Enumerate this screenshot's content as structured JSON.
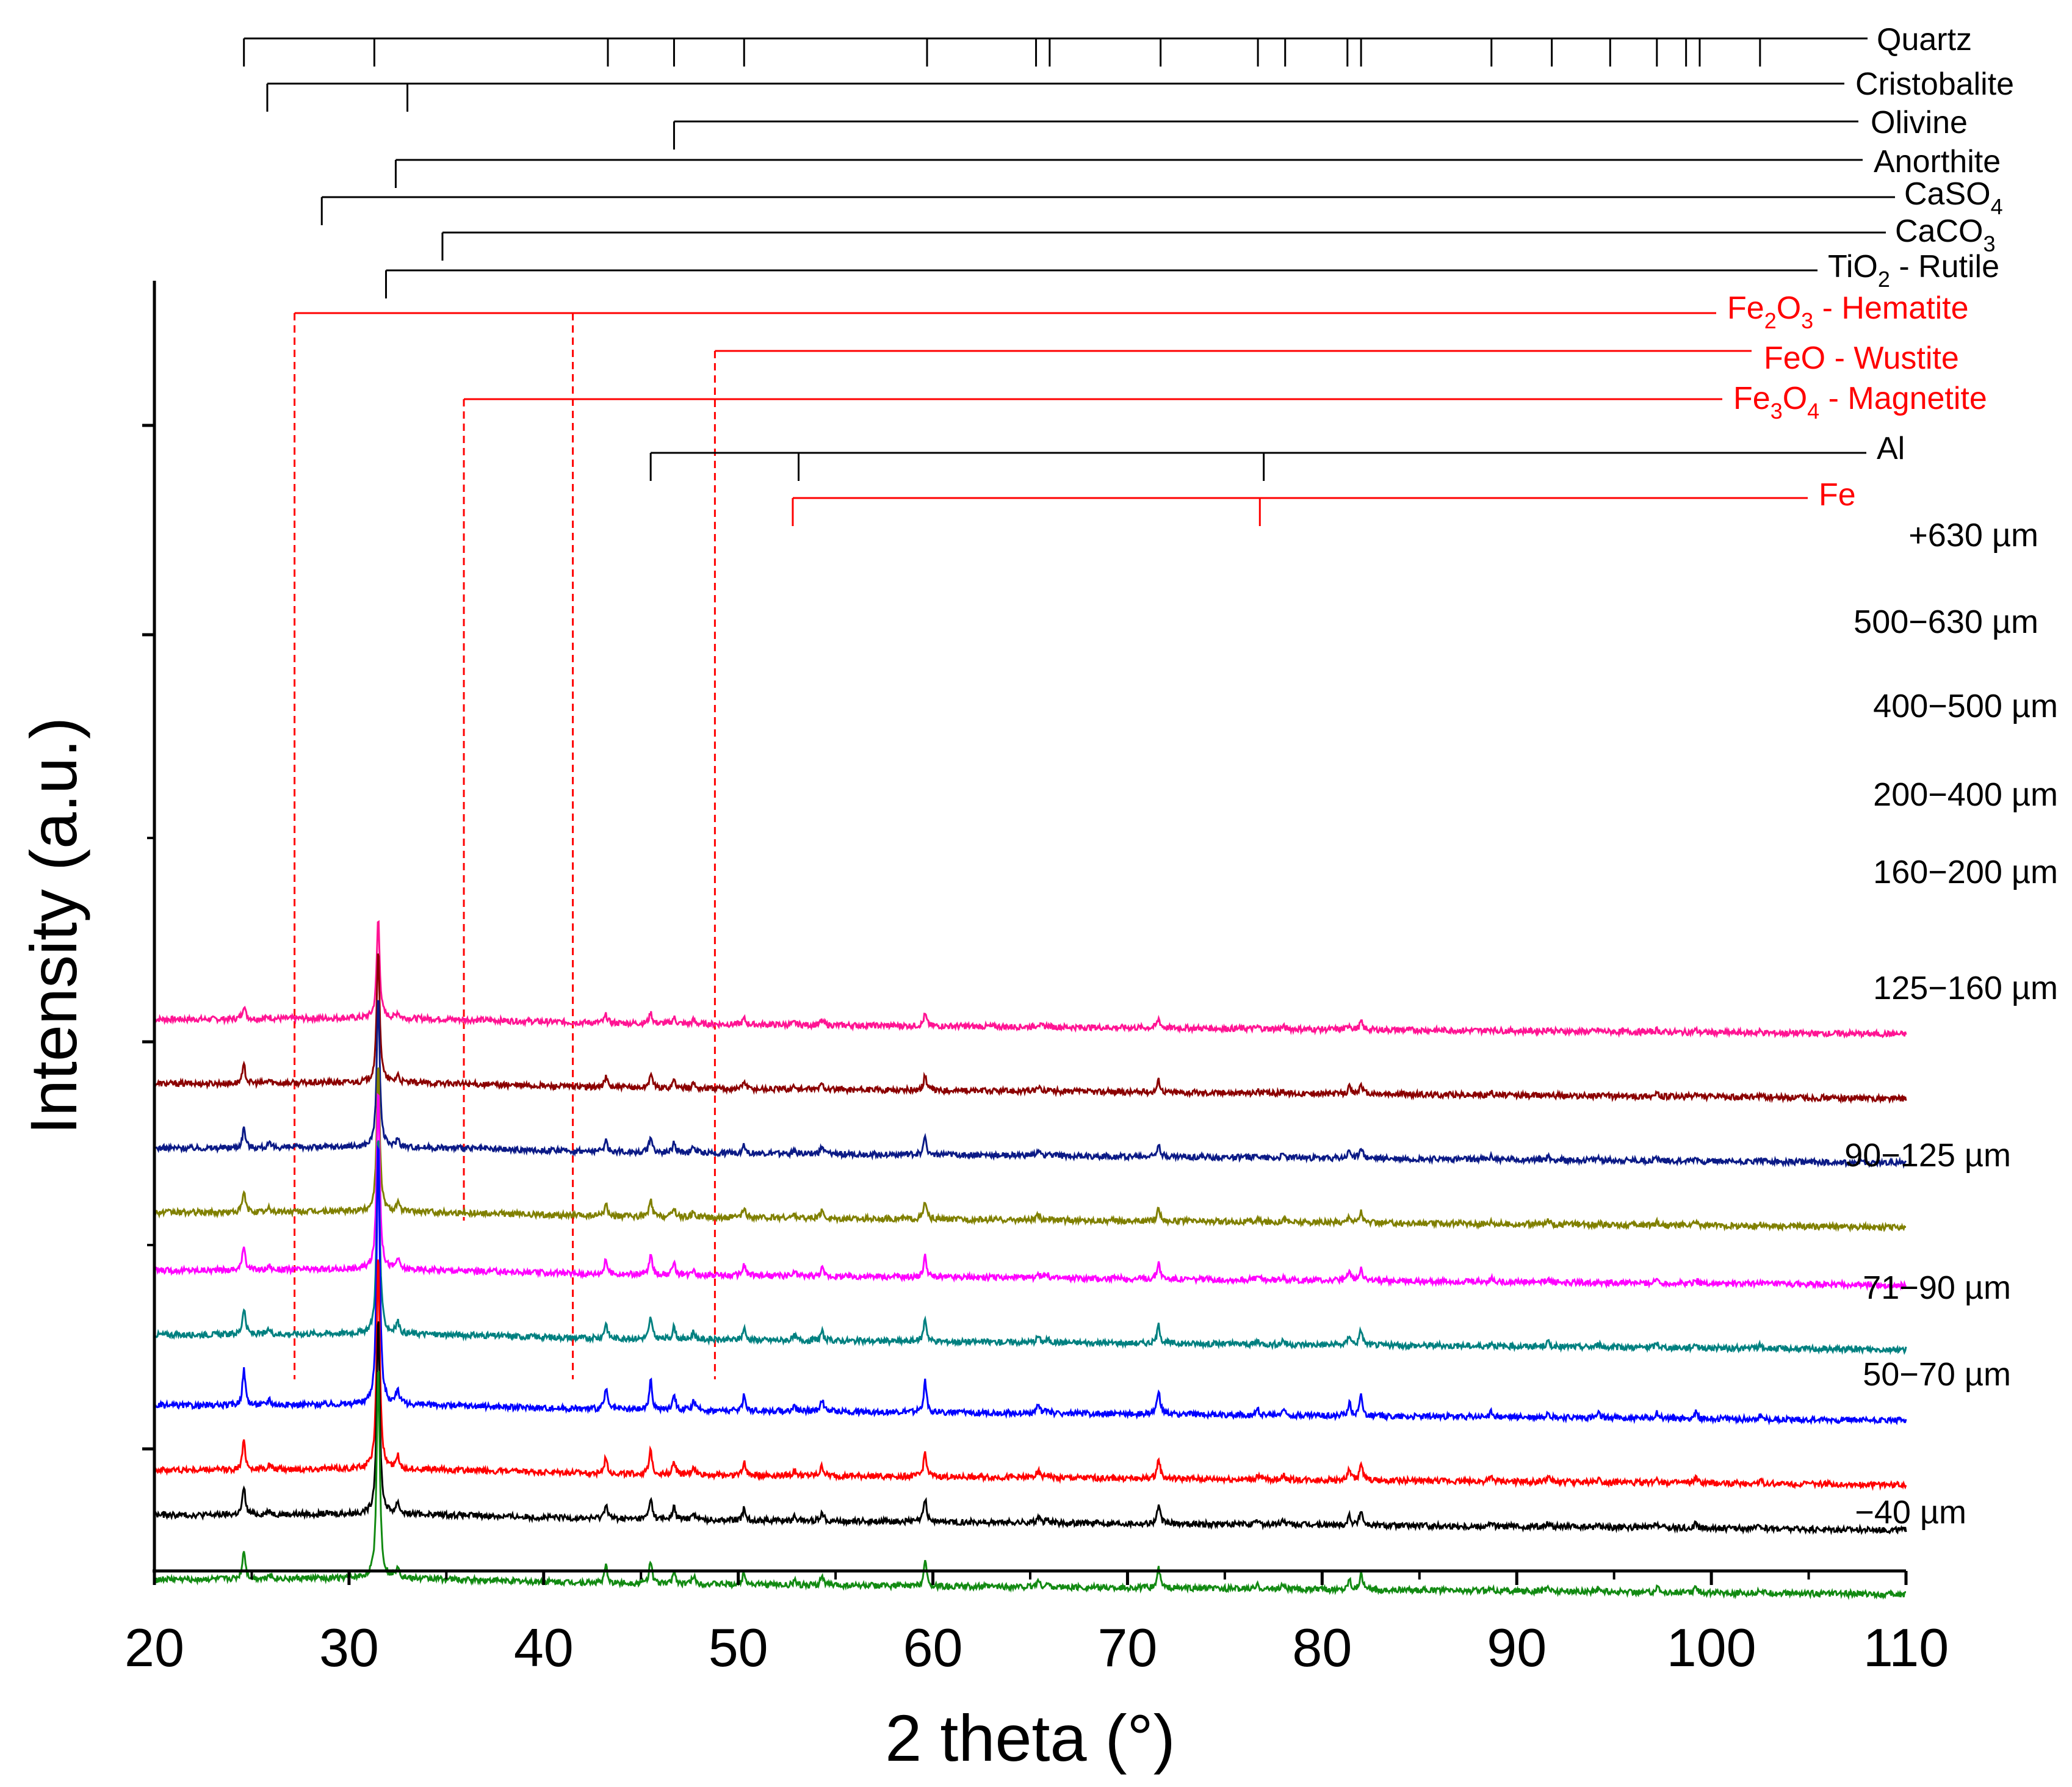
{
  "chart_data": {
    "type": "line",
    "title": "",
    "xlabel": "2 theta (°)",
    "ylabel": "Intensity (a.u.)",
    "xlim": [
      20,
      110
    ],
    "xticks": [
      "20",
      "30",
      "40",
      "50",
      "60",
      "70",
      "80",
      "90",
      "100",
      "110"
    ],
    "series": [
      {
        "name": "+630 µm",
        "color": "#ff1493",
        "strength": 0.3,
        "offset": 4.05
      },
      {
        "name": "500−630 µm",
        "color": "#8b0000",
        "strength": 0.4,
        "offset": 3.55
      },
      {
        "name": "400−500 µm",
        "color": "#0b1a86",
        "strength": 0.45,
        "offset": 3.05
      },
      {
        "name": "200−400 µm",
        "color": "#808000",
        "strength": 0.45,
        "offset": 2.55
      },
      {
        "name": "160−200 µm",
        "color": "#ff00ff",
        "strength": 0.55,
        "offset": 2.1
      },
      {
        "name": "125−160 µm",
        "color": "#008080",
        "strength": 0.6,
        "offset": 1.6
      },
      {
        "name": "90−125 µm",
        "color": "#0000ff",
        "strength": 0.8,
        "offset": 1.05
      },
      {
        "name": "71−90 µm",
        "color": "#ff0000",
        "strength": 0.65,
        "offset": 0.55
      },
      {
        "name": "50−70 µm",
        "color": "#000000",
        "strength": 0.6,
        "offset": 0.2
      },
      {
        "name": "−40 µm",
        "color": "#128a12",
        "strength": 0.65,
        "offset": -0.3
      }
    ],
    "peaks": [
      {
        "x": 24.6,
        "h": 0.35
      },
      {
        "x": 25.9,
        "h": 0.06
      },
      {
        "x": 31.5,
        "h": 2.6
      },
      {
        "x": 32.5,
        "h": 0.15
      },
      {
        "x": 43.2,
        "h": 0.2
      },
      {
        "x": 45.5,
        "h": 0.28
      },
      {
        "x": 46.7,
        "h": 0.16
      },
      {
        "x": 47.7,
        "h": 0.1
      },
      {
        "x": 50.3,
        "h": 0.15
      },
      {
        "x": 52.9,
        "h": 0.06
      },
      {
        "x": 54.3,
        "h": 0.12
      },
      {
        "x": 59.6,
        "h": 0.3
      },
      {
        "x": 65.4,
        "h": 0.08
      },
      {
        "x": 65.9,
        "h": 0.04
      },
      {
        "x": 71.6,
        "h": 0.24
      },
      {
        "x": 76.7,
        "h": 0.05
      },
      {
        "x": 78.0,
        "h": 0.06
      },
      {
        "x": 81.4,
        "h": 0.13
      },
      {
        "x": 82.0,
        "h": 0.2
      },
      {
        "x": 88.7,
        "h": 0.05
      },
      {
        "x": 91.6,
        "h": 0.06
      },
      {
        "x": 94.2,
        "h": 0.04
      },
      {
        "x": 97.2,
        "h": 0.06
      },
      {
        "x": 99.2,
        "h": 0.06
      },
      {
        "x": 102.5,
        "h": 0.04
      }
    ],
    "reference_phases": [
      {
        "name": "Quartz",
        "color": "#000000",
        "dashed": false,
        "positions": [
          24.6,
          31.3,
          43.3,
          46.7,
          50.3,
          59.7,
          65.3,
          66.0,
          71.7,
          76.7,
          78.1,
          81.3,
          82.0,
          88.7,
          91.8,
          94.8,
          97.2,
          98.7,
          99.4,
          102.5
        ]
      },
      {
        "name": "Cristobalite",
        "color": "#000000",
        "dashed": false,
        "positions": [
          25.8,
          33.0
        ]
      },
      {
        "name": "Olivine",
        "color": "#000000",
        "dashed": false,
        "positions": [
          46.7
        ]
      },
      {
        "name": "Anorthite",
        "color": "#000000",
        "dashed": false,
        "positions": [
          32.4
        ]
      },
      {
        "name": "CaSO4",
        "color": "#000000",
        "dashed": false,
        "positions": [
          28.6
        ]
      },
      {
        "name": "CaCO3",
        "color": "#000000",
        "dashed": false,
        "positions": [
          34.8
        ]
      },
      {
        "name": "TiO2 - Rutile",
        "color": "#000000",
        "dashed": false,
        "positions": [
          31.9
        ]
      },
      {
        "name": "Fe2O3 - Hematite",
        "color": "#ff0000",
        "dashed": true,
        "positions": [
          27.2,
          41.5
        ]
      },
      {
        "name": "FeO - Wustite",
        "color": "#ff0000",
        "dashed": true,
        "positions": [
          48.8
        ]
      },
      {
        "name": "Fe3O4 - Magnetite",
        "color": "#ff0000",
        "dashed": true,
        "positions": [
          35.9
        ]
      },
      {
        "name": "Al",
        "color": "#000000",
        "dashed": false,
        "positions": [
          45.5,
          53.1,
          77.0
        ]
      },
      {
        "name": "Fe",
        "color": "#ff0000",
        "dashed": false,
        "positions": [
          52.8,
          76.8
        ]
      }
    ]
  },
  "phase_labels": {
    "quartz": "Quartz",
    "cristobalite": "Cristobalite",
    "olivine": "Olivine",
    "anorthite": "Anorthite",
    "caso4": {
      "main": "CaSO",
      "sub": "4"
    },
    "caco3": {
      "main": "CaCO",
      "sub": "3"
    },
    "tio2": {
      "pre": "TiO",
      "sub": "2",
      "post": " - Rutile"
    },
    "hematite": {
      "pre": "Fe",
      "sub1": "2",
      "mid": "O",
      "sub2": "3",
      "post": " - Hematite"
    },
    "wustite": "FeO - Wustite",
    "magnetite": {
      "pre": "Fe",
      "sub1": "3",
      "mid": "O",
      "sub2": "4",
      "post": " - Magnetite"
    },
    "al": "Al",
    "fe": "Fe"
  }
}
